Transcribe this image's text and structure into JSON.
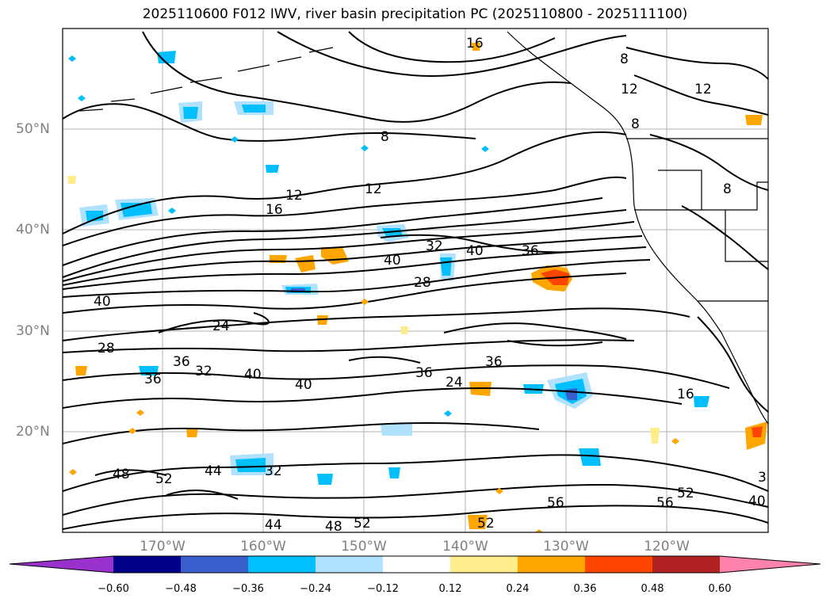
{
  "title": "2025110600 F012 IWV, river basin precipitation PC (2025110800 - 2025111100)",
  "lat_labels": [
    "50°N",
    "40°N",
    "30°N",
    "20°N"
  ],
  "lon_labels": [
    "170°W",
    "160°W",
    "150°W",
    "140°W",
    "130°W",
    "120°W"
  ],
  "contour_labels": [
    "16",
    "8",
    "12",
    "8",
    "12",
    "8",
    "12",
    "16",
    "12",
    "8",
    "40",
    "32",
    "40",
    "36",
    "28",
    "40",
    "24",
    "28",
    "36",
    "32",
    "40",
    "36",
    "40",
    "36",
    "24",
    "36",
    "16",
    "48",
    "52",
    "44",
    "32",
    "44",
    "48",
    "52",
    "56",
    "56",
    "52",
    "52",
    "40",
    "3"
  ],
  "colorbar": {
    "colors": [
      "#9932cc",
      "#00008b",
      "#3a5fcd",
      "#00bfff",
      "#b0e2ff",
      "#ffffff",
      "#ffec8b",
      "#ffa500",
      "#ff4500",
      "#b22222",
      "#ff82ab"
    ],
    "tick_labels": [
      "−0.60",
      "−0.48",
      "−0.36",
      "−0.24",
      "−0.12",
      "0.12",
      "0.24",
      "0.36",
      "0.48",
      "0.60"
    ]
  },
  "colors": {
    "contour": "#000000",
    "grid": "#b0b0b0",
    "coast": "#000000",
    "axis_label": "#808080"
  }
}
